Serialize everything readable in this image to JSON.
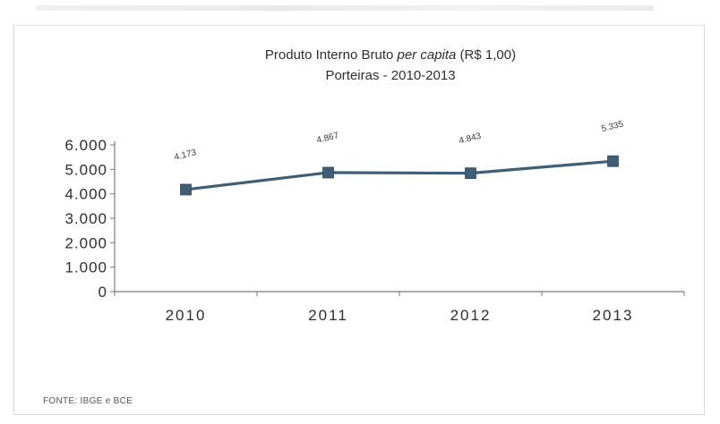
{
  "chart_data": {
    "type": "line",
    "title": "Produto Interno Bruto per capita (R$ 1,00)",
    "title_plain": "Produto Interno Bruto ",
    "title_italic": "per capita",
    "title_end": " (R$ 1,00)",
    "subtitle": "Porteiras - 2010-2013",
    "categories": [
      "2010",
      "2011",
      "2012",
      "2013"
    ],
    "series": [
      {
        "values": [
          4173,
          4867,
          4843,
          5335
        ],
        "labels": [
          "4.173",
          "4.867",
          "4.843",
          "5.335"
        ],
        "color": "#3f5f77"
      }
    ],
    "ylim": [
      0,
      6000
    ],
    "yticks": [
      0,
      1000,
      2000,
      3000,
      4000,
      5000,
      6000
    ],
    "ytick_labels": [
      "0",
      "1.000",
      "2.000",
      "3.000",
      "4.000",
      "5.000",
      "6.000"
    ],
    "xlabel": "",
    "ylabel": "",
    "grid": false,
    "legend": "none"
  },
  "source": "FONTE: IBGE e BCE"
}
